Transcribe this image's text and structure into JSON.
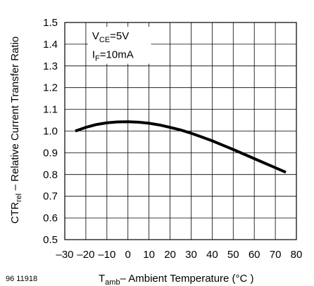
{
  "chart_data": {
    "type": "line",
    "ylabel": {
      "main": "CTR",
      "sub": "rel",
      "rest": " – Relative Current Transfer Ratio"
    },
    "xlabel": {
      "main": "T",
      "sub": "amb",
      "rest": "– Ambient Temperature (°C )"
    },
    "figure_id": "96 11918",
    "conditions": [
      {
        "main": "V",
        "sub": "CE",
        "rest": "=5V"
      },
      {
        "main": "I",
        "sub": "F",
        "rest": "=10mA"
      }
    ],
    "xlim": [
      -30,
      80
    ],
    "ylim": [
      0.5,
      1.5
    ],
    "xticks": [
      -30,
      -20,
      -10,
      0,
      10,
      20,
      30,
      40,
      50,
      60,
      70,
      80
    ],
    "yticks": [
      0.5,
      0.6,
      0.7,
      0.8,
      0.9,
      1.0,
      1.1,
      1.2,
      1.3,
      1.4,
      1.5
    ],
    "xtick_labels": [
      "–30",
      "–20",
      "–10",
      "0",
      "10",
      "20",
      "30",
      "40",
      "50",
      "60",
      "70",
      "80"
    ],
    "ytick_labels": [
      "0.5",
      "0.6",
      "0.7",
      "0.8",
      "0.9",
      "1.0",
      "1.1",
      "1.2",
      "1.3",
      "1.4",
      "1.5"
    ],
    "grid": true,
    "series": [
      {
        "x": [
          -25,
          -20,
          -15,
          -10,
          -5,
          0,
          5,
          10,
          15,
          20,
          25,
          30,
          35,
          40,
          45,
          50,
          55,
          60,
          65,
          70,
          75
        ],
        "values": [
          1.0,
          1.017,
          1.03,
          1.038,
          1.042,
          1.043,
          1.041,
          1.036,
          1.028,
          1.017,
          1.005,
          0.99,
          0.973,
          0.955,
          0.935,
          0.915,
          0.894,
          0.873,
          0.852,
          0.831,
          0.81
        ]
      }
    ]
  }
}
